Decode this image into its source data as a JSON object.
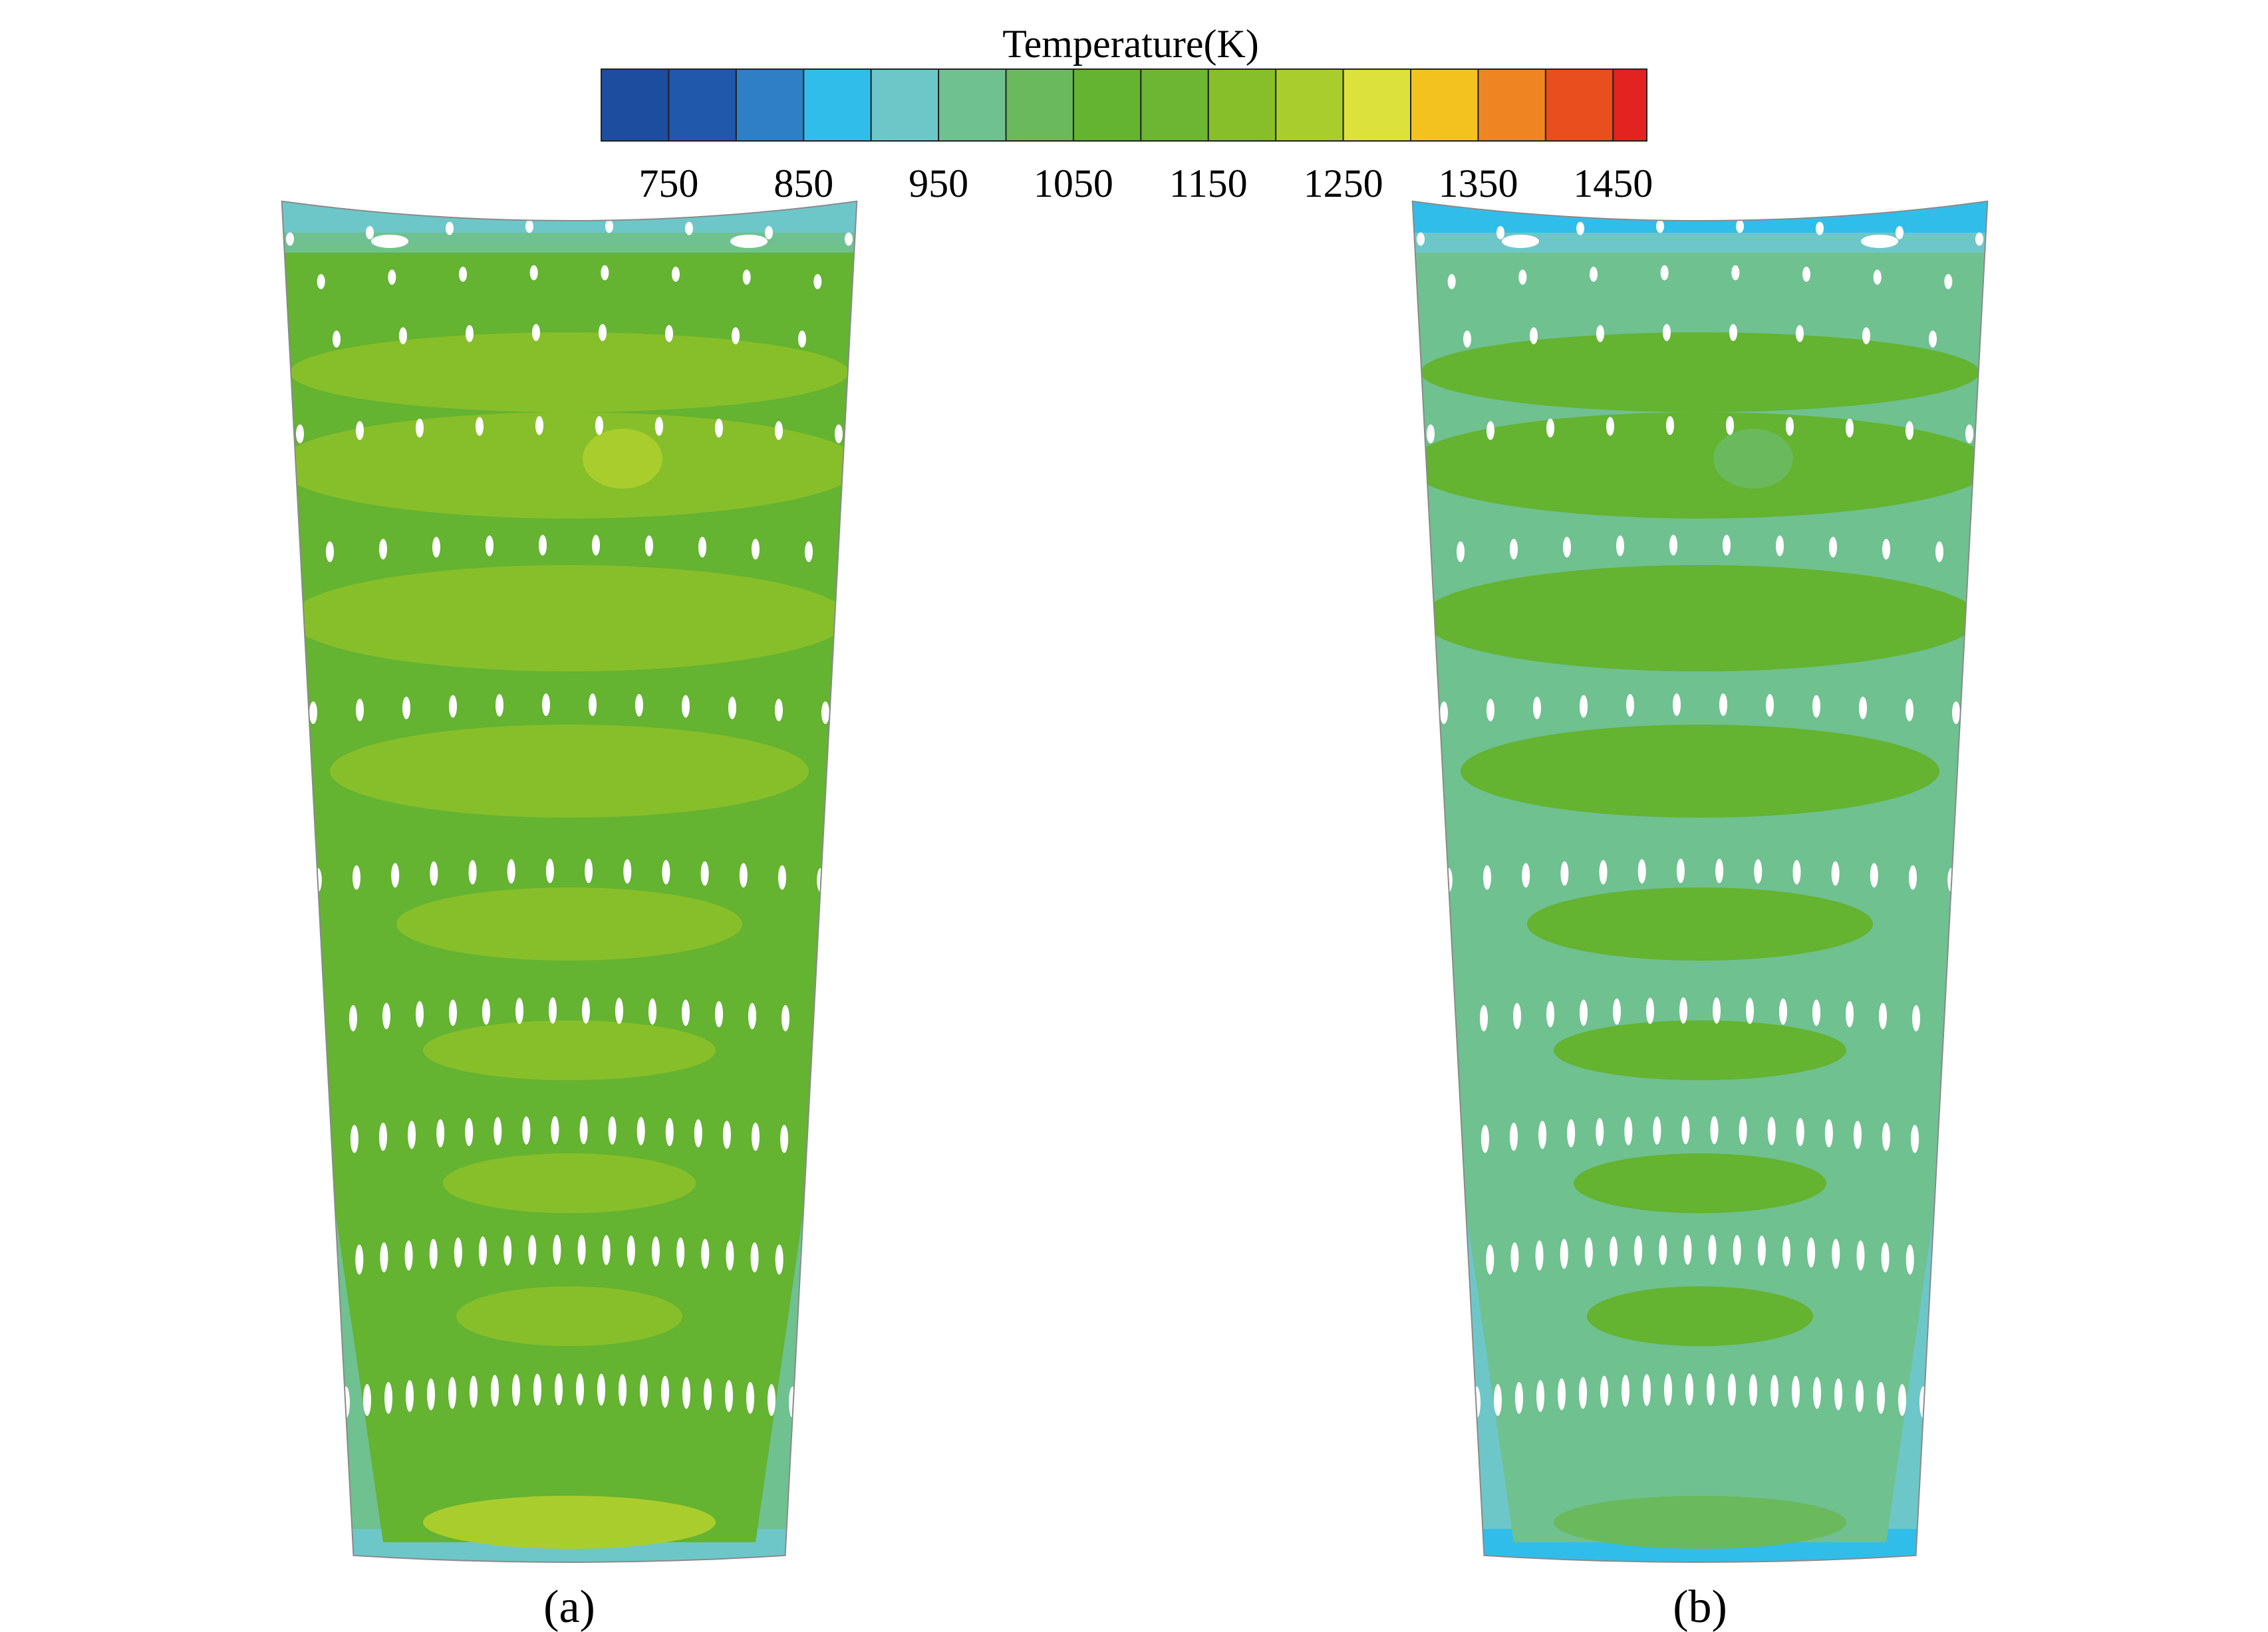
{
  "legend": {
    "title": "Temperature(K)",
    "min": 700,
    "max": 1450,
    "bands": [
      {
        "from": 700,
        "to": 750,
        "color": "#1d4d9f"
      },
      {
        "from": 750,
        "to": 800,
        "color": "#2058ac"
      },
      {
        "from": 800,
        "to": 850,
        "color": "#2e7fc6"
      },
      {
        "from": 850,
        "to": 900,
        "color": "#31bde9"
      },
      {
        "from": 900,
        "to": 950,
        "color": "#6dc7c9"
      },
      {
        "from": 950,
        "to": 1000,
        "color": "#6fc190"
      },
      {
        "from": 1000,
        "to": 1050,
        "color": "#6ab95c"
      },
      {
        "from": 1050,
        "to": 1100,
        "color": "#64b331"
      },
      {
        "from": 1100,
        "to": 1150,
        "color": "#6db634"
      },
      {
        "from": 1150,
        "to": 1200,
        "color": "#87bf2a"
      },
      {
        "from": 1200,
        "to": 1250,
        "color": "#aacd2e"
      },
      {
        "from": 1250,
        "to": 1300,
        "color": "#dde13c"
      },
      {
        "from": 1300,
        "to": 1350,
        "color": "#f4c21e"
      },
      {
        "from": 1350,
        "to": 1400,
        "color": "#ee8522"
      },
      {
        "from": 1400,
        "to": 1450,
        "color": "#e84e1e"
      },
      {
        "from": 1450,
        "to": 1475,
        "color": "#e2231f"
      }
    ],
    "ticks": [
      "750",
      "850",
      "950",
      "1050",
      "1150",
      "1250",
      "1350",
      "1450"
    ]
  },
  "panels": [
    {
      "label": "(a)",
      "edge_color": "#2e7fc6",
      "side_color": "#31bde9",
      "outer_color": "#6dc7c9",
      "mid_color": "#6fc190",
      "inner_color": "#64b331",
      "hot_color": "#87bf2a",
      "hotspot_color": "#aacd2e"
    },
    {
      "label": "(b)",
      "edge_color": "#1d4d9f",
      "side_color": "#2e7fc6",
      "outer_color": "#31bde9",
      "mid_color": "#6dc7c9",
      "inner_color": "#6fc190",
      "hot_color": "#64b331",
      "hotspot_color": "#6ab95c"
    }
  ],
  "cooling_hole_color": "#ffffff"
}
